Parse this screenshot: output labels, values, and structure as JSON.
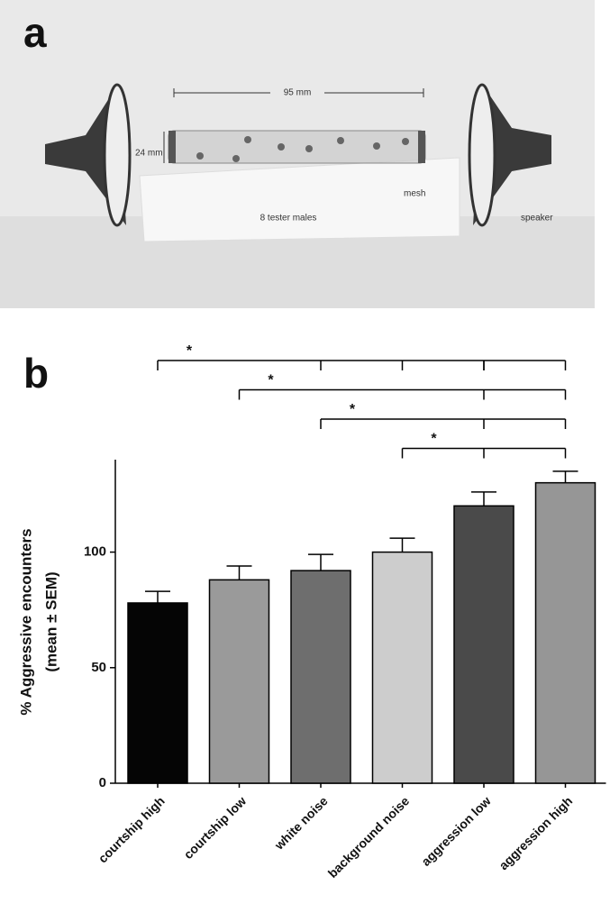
{
  "panel_a": {
    "label": "a",
    "length": "95 mm",
    "diameter": "24 mm",
    "mesh": "mesh",
    "flies": "8 tester males",
    "speaker": "speaker"
  },
  "chart_data": {
    "type": "bar",
    "panel_label": "b",
    "y_label": [
      "% Aggressive encounters",
      "(mean ± SEM)"
    ],
    "categories": [
      "courtship high",
      "courtship low",
      "white noise",
      "background noise",
      "aggression low",
      "aggression high"
    ],
    "values": [
      78,
      88,
      92,
      100,
      120,
      130
    ],
    "errors": [
      5,
      6,
      7,
      6,
      6,
      5
    ],
    "colors": [
      "#050505",
      "#9a9a9a",
      "#6e6e6e",
      "#cdcdcd",
      "#4a4a4a",
      "#969696"
    ],
    "ylim": [
      0,
      140
    ],
    "yticks": [
      0,
      50,
      100
    ],
    "significance": [
      {
        "text": "*",
        "from": "courtship high",
        "to": "aggression high"
      },
      {
        "text": "*",
        "from": "courtship low",
        "to": "aggression high"
      },
      {
        "text": "*",
        "from": "white noise",
        "to": "aggression high"
      },
      {
        "text": "*",
        "from": "background noise",
        "to": "aggression high"
      }
    ]
  }
}
